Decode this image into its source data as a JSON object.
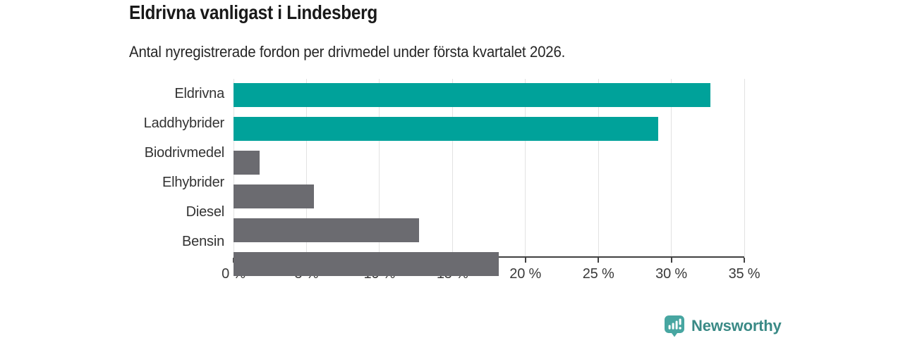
{
  "header": {
    "title": "Eldrivna vanligast i Lindesberg",
    "subtitle": "Antal nyregistrerade fordon per drivmedel under första kvartalet 2026."
  },
  "chart_data": {
    "type": "bar",
    "orientation": "horizontal",
    "title": "Eldrivna vanligast i Lindesberg",
    "subtitle": "Antal nyregistrerade fordon per drivmedel under första kvartalet 2026.",
    "xlabel": "",
    "ylabel": "",
    "unit": "%",
    "categories": [
      "Eldrivna",
      "Laddhybrider",
      "Biodrivmedel",
      "Elhybrider",
      "Diesel",
      "Bensin"
    ],
    "values": [
      32.7,
      29.1,
      1.8,
      5.5,
      12.7,
      18.2
    ],
    "bar_colors": [
      "#00a29a",
      "#00a29a",
      "#6b6b70",
      "#6b6b70",
      "#6b6b70",
      "#6b6b70"
    ],
    "xlim": [
      0,
      35
    ],
    "x_ticks": [
      0,
      5,
      10,
      15,
      20,
      25,
      30,
      35
    ],
    "x_tick_labels": [
      "0 %",
      "5 %",
      "10 %",
      "15 %",
      "20 %",
      "25 %",
      "30 %",
      "35 %"
    ],
    "grid": "vertical",
    "legend": "none"
  },
  "colors": {
    "highlight": "#00a29a",
    "default_bar": "#6b6b70",
    "gridline": "#e2e2e2",
    "axis": "#414141"
  },
  "footer": {
    "brand": "Newsworthy",
    "brand_color": "#3a8a86",
    "icon_color": "#47a6a1"
  }
}
